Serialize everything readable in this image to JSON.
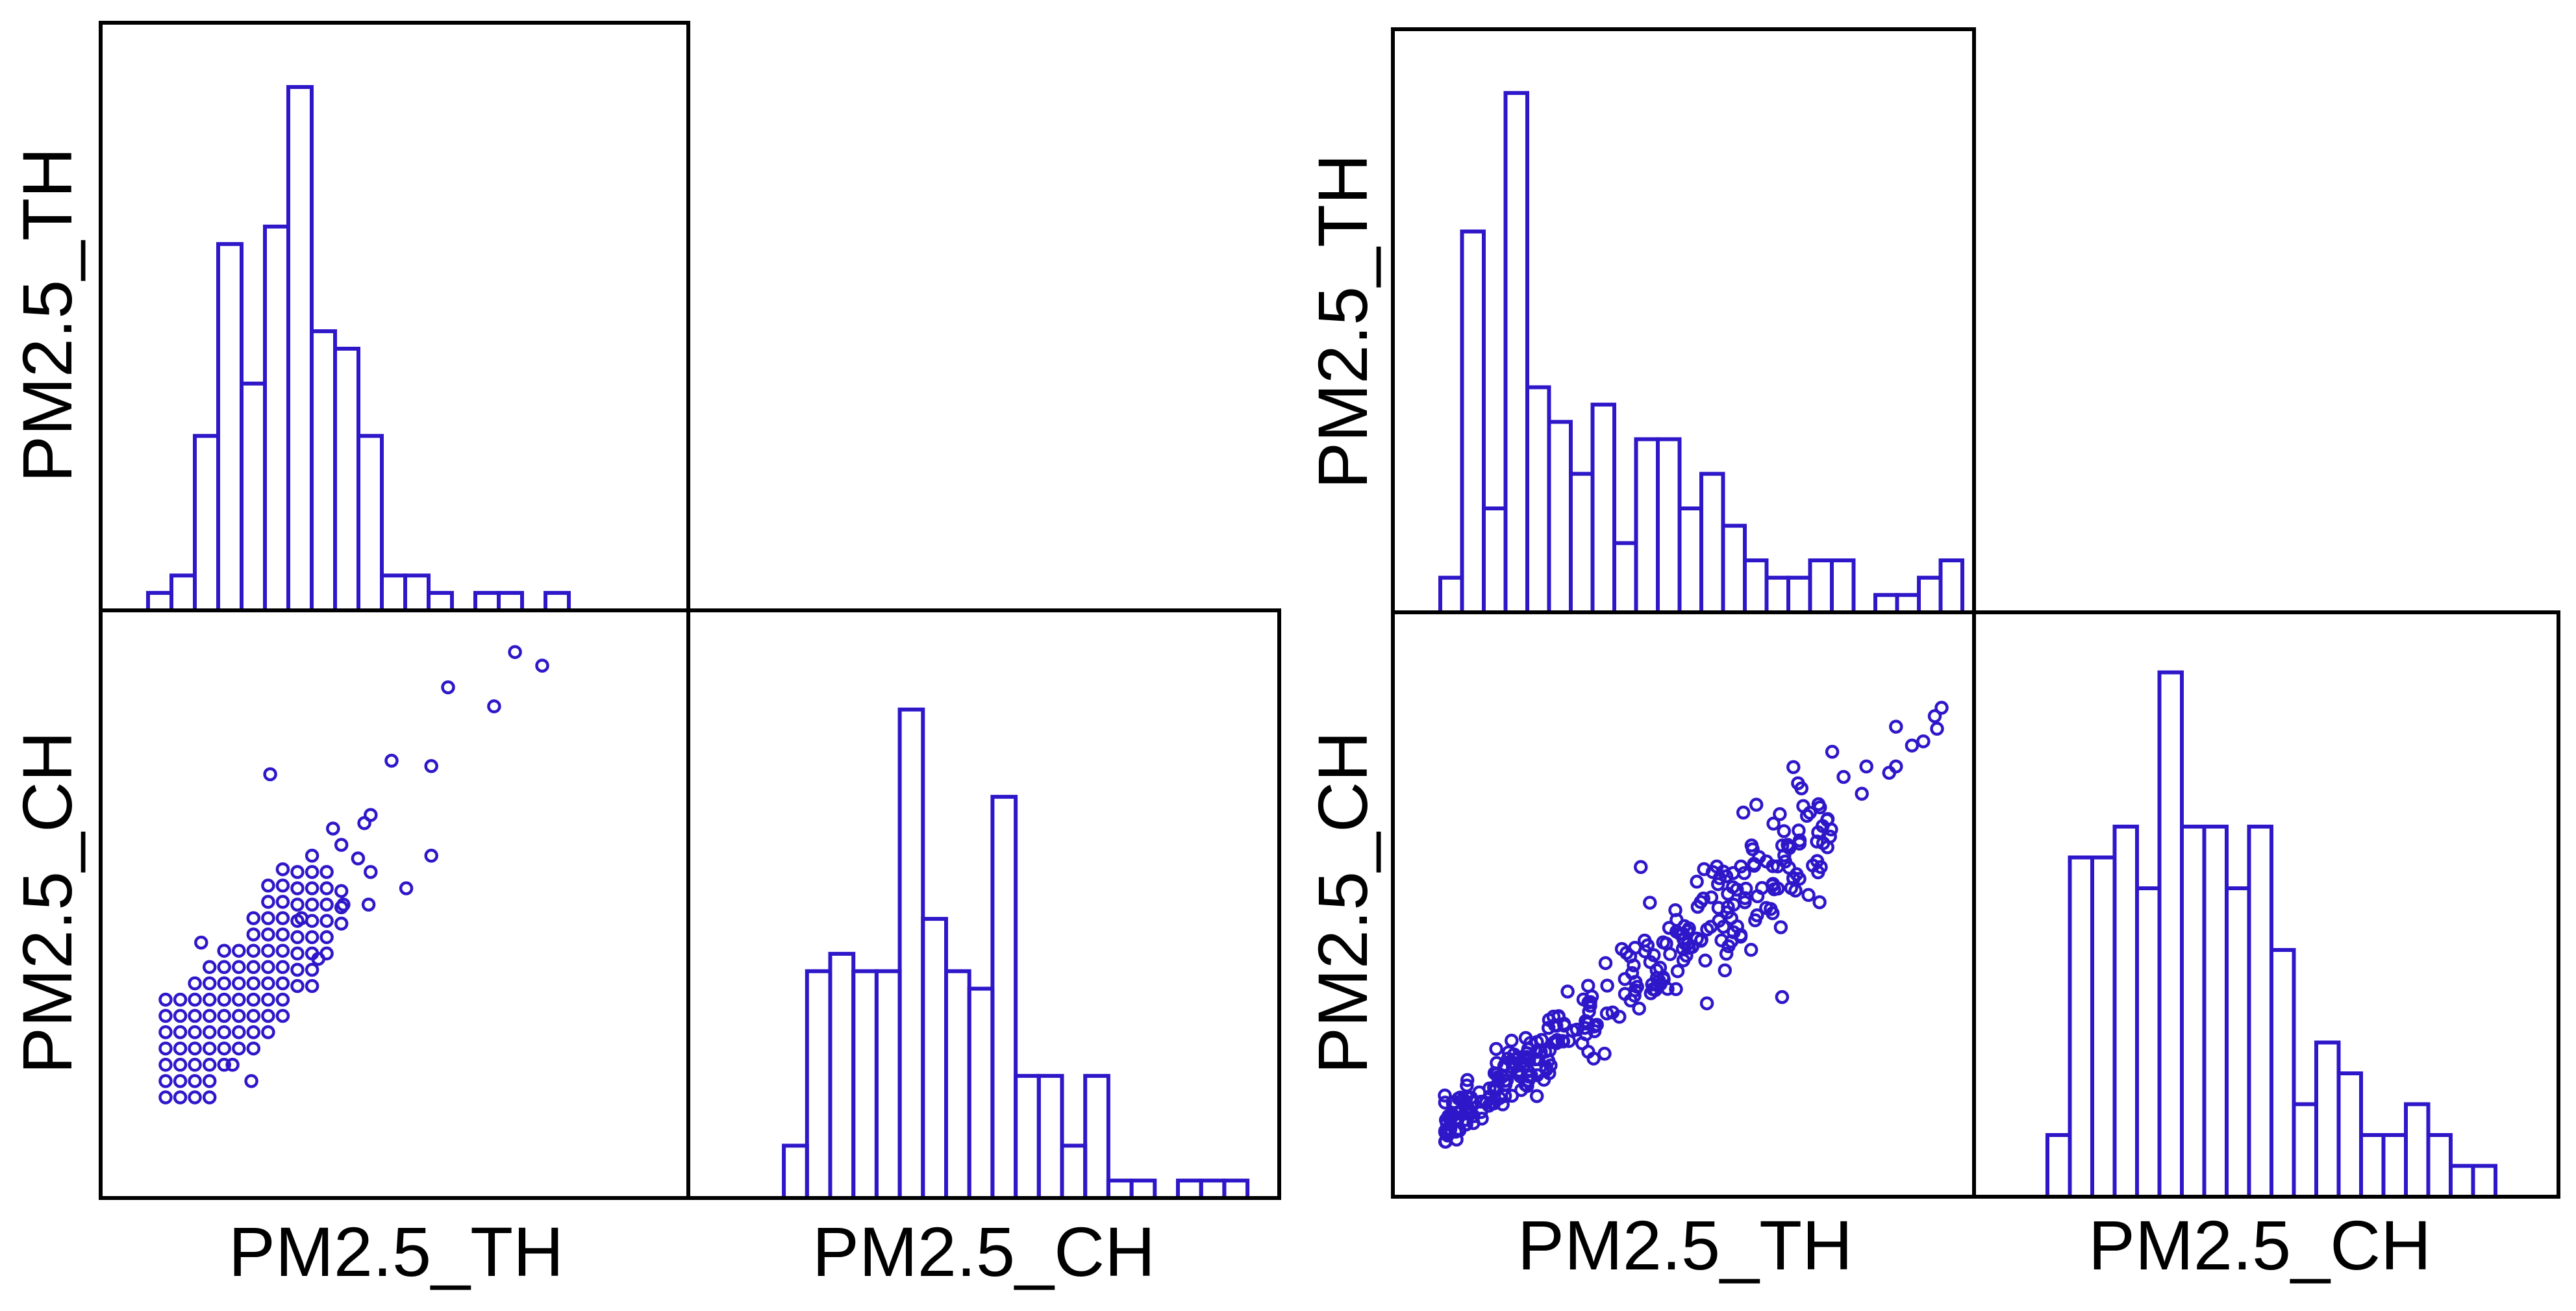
{
  "colors": {
    "mark": "#2e17c9",
    "frame": "#000000",
    "background": "#ffffff"
  },
  "chart_data": [
    {
      "id": "left",
      "type": "scatter-matrix",
      "variables": [
        "PM2.5_TH",
        "PM2.5_CH"
      ],
      "xlabels": [
        "PM2.5_TH",
        "PM2.5_CH"
      ],
      "ylabels": [
        "PM2.5_TH",
        "PM2.5_CH"
      ],
      "grid": false,
      "hist_th": {
        "range": [
          0,
          20
        ],
        "counts": [
          1,
          2,
          10,
          21,
          13,
          22,
          30,
          16,
          15,
          10,
          2,
          2,
          1,
          0,
          1,
          1,
          0,
          1,
          0,
          0
        ],
        "ymax": 32
      },
      "hist_ch": {
        "range": [
          0,
          20
        ],
        "counts": [
          0,
          0,
          0,
          3,
          13,
          14,
          13,
          13,
          28,
          16,
          13,
          12,
          23,
          7,
          7,
          3,
          7,
          1,
          1,
          0,
          1,
          1,
          1
        ],
        "ymax": 32
      },
      "scatter": {
        "xlim": [
          0,
          20
        ],
        "ylim": [
          0,
          20
        ],
        "grid_points": [
          {
            "x": 2.5,
            "y_min": 3.5,
            "y_max": 7.5
          },
          {
            "x": 3.2,
            "y_min": 3.5,
            "y_max": 7.5
          },
          {
            "x": 3.9,
            "y_min": 3.5,
            "y_max": 8.1
          },
          {
            "x": 4.6,
            "y_min": 3.5,
            "y_max": 8.7
          },
          {
            "x": 5.3,
            "y_min": 4.7,
            "y_max": 9.3
          },
          {
            "x": 6.0,
            "y_min": 5.3,
            "y_max": 9.3
          },
          {
            "x": 6.7,
            "y_min": 5.3,
            "y_max": 10.4
          },
          {
            "x": 7.4,
            "y_min": 5.9,
            "y_max": 11.6
          },
          {
            "x": 8.1,
            "y_min": 6.5,
            "y_max": 12.2
          },
          {
            "x": 8.8,
            "y_min": 7.6,
            "y_max": 12.2
          },
          {
            "x": 9.5,
            "y_min": 7.6,
            "y_max": 12.8
          },
          {
            "x": 10.2,
            "y_min": 8.8,
            "y_max": 12.2
          },
          {
            "x": 10.9,
            "y_min": 9.9,
            "y_max": 11.6
          }
        ],
        "extra_points": [
          [
            4.2,
            9.2
          ],
          [
            6.6,
            4.1
          ],
          [
            5.7,
            4.7
          ],
          [
            9.8,
            8.6
          ],
          [
            10.5,
            13.4
          ],
          [
            11.7,
            12.3
          ],
          [
            10.9,
            12.8
          ],
          [
            12.3,
            13.9
          ],
          [
            13.3,
            15.9
          ],
          [
            12.3,
            11.8
          ],
          [
            11.0,
            10.6
          ],
          [
            12.0,
            13.6
          ],
          [
            7.5,
            15.4
          ],
          [
            12.2,
            10.6
          ],
          [
            15.2,
            12.4
          ],
          [
            15.2,
            15.7
          ],
          [
            19.2,
            19.9
          ],
          [
            20.5,
            19.4
          ],
          [
            18.2,
            17.9
          ],
          [
            16.0,
            18.6
          ],
          [
            14.0,
            11.2
          ],
          [
            9.0,
            10.1
          ]
        ]
      }
    },
    {
      "id": "right",
      "type": "scatter-matrix",
      "variables": [
        "PM2.5_TH",
        "PM2.5_CH"
      ],
      "xlabels": [
        "PM2.5_TH",
        "PM2.5_CH"
      ],
      "ylabels": [
        "PM2.5_TH",
        "PM2.5_CH"
      ],
      "grid": false,
      "hist_th": {
        "range": [
          0,
          25
        ],
        "counts": [
          2,
          22,
          6,
          30,
          13,
          11,
          8,
          12,
          4,
          10,
          10,
          6,
          8,
          5,
          3,
          2,
          2,
          3,
          3,
          0,
          1,
          1,
          2,
          3,
          0,
          0
        ],
        "ymax": 32
      },
      "hist_ch": {
        "range": [
          0,
          25
        ],
        "counts": [
          0,
          0,
          0,
          0,
          2,
          11,
          11,
          12,
          10,
          17,
          12,
          12,
          10,
          12,
          8,
          3,
          5,
          4,
          2,
          2,
          3,
          2,
          1,
          1,
          0
        ],
        "ymax": 18
      },
      "scatter": {
        "xlim": [
          0,
          25
        ],
        "ylim": [
          0,
          25
        ],
        "generated": {
          "n": 320,
          "slope": 0.86,
          "intercept": 0.6,
          "x_min": 0.5,
          "x_max": 17.5,
          "noise_sd": 1.1
        },
        "extra_points": [
          [
            17.5,
            19.0
          ],
          [
            22.1,
            20.1
          ],
          [
            21.0,
            19.3
          ],
          [
            20.3,
            20.2
          ],
          [
            22.0,
            20.7
          ],
          [
            16.0,
            17.5
          ],
          [
            18.8,
            17.0
          ],
          [
            16.9,
            16.5
          ],
          [
            20.0,
            18.0
          ],
          [
            17.0,
            13.5
          ],
          [
            15.7,
            12.5
          ],
          [
            18.0,
            17.8
          ],
          [
            14.8,
            11.5
          ],
          [
            14.9,
            12.7
          ],
          [
            14.2,
            11.2
          ],
          [
            15.3,
            7.3
          ],
          [
            12.0,
            7.0
          ],
          [
            9.1,
            13.5
          ],
          [
            9.5,
            11.8
          ],
          [
            13.6,
            16.1
          ],
          [
            20.3,
            18.3
          ],
          [
            22.3,
            21.1
          ],
          [
            21.5,
            19.5
          ],
          [
            19.0,
            18.3
          ]
        ]
      }
    }
  ]
}
